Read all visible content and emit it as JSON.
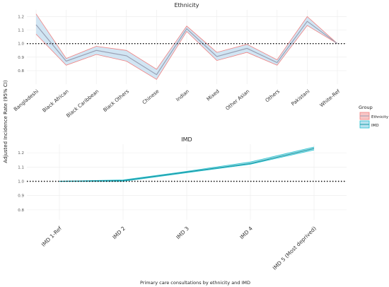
{
  "figure": {
    "ylabel": "Adjusted Incidence Rate (95% CI)",
    "xlabel": "Primary care consultations by ethnicity and IMD"
  },
  "legend": {
    "title": "Group",
    "items": [
      {
        "label": "Ethnicity",
        "fill": "#f8c6c6",
        "line": "#f08080"
      },
      {
        "label": "IMD",
        "fill": "#b8e2ef",
        "line": "#24c0cf"
      }
    ]
  },
  "chart_data": [
    {
      "type": "line",
      "title": "Ethnicity",
      "series_name": "Ethnicity",
      "categories": [
        "Bangladeshi",
        "Black African",
        "Black Caribbean",
        "Black Others",
        "Chinese",
        "Indian",
        "Mixed",
        "Other Asian",
        "Others",
        "Pakistani",
        "White-Ref"
      ],
      "values": [
        1.14,
        0.87,
        0.95,
        0.91,
        0.77,
        1.11,
        0.905,
        0.965,
        0.86,
        1.165,
        1.0
      ],
      "lower": [
        1.07,
        0.84,
        0.92,
        0.87,
        0.735,
        1.09,
        0.875,
        0.935,
        0.84,
        1.135,
        1.0
      ],
      "upper": [
        1.22,
        0.89,
        0.98,
        0.95,
        0.81,
        1.13,
        0.935,
        0.995,
        0.88,
        1.2,
        1.0
      ],
      "reference": 1.0,
      "ylim": [
        0.7,
        1.25
      ],
      "yticks": [
        "0.8",
        "0.9",
        "1.0",
        "1.1",
        "1.2"
      ],
      "colors": {
        "band": "#cfe4f2",
        "line": "#b8bcc8",
        "edge": "#f08080",
        "center": "#9aa0b4"
      }
    },
    {
      "type": "line",
      "title": "IMD",
      "series_name": "IMD",
      "categories": [
        "IMD 1-Ref",
        "IMD 2",
        "IMD 3",
        "IMD 4",
        "IMD 5 (Most deprived)"
      ],
      "values": [
        1.0,
        1.005,
        1.065,
        1.125,
        1.23
      ],
      "lower": [
        1.0,
        1.0,
        1.06,
        1.12,
        1.22
      ],
      "upper": [
        1.0,
        1.01,
        1.07,
        1.135,
        1.24
      ],
      "reference": 1.0,
      "ylim": [
        0.73,
        1.26
      ],
      "yticks": [
        "0.8",
        "0.9",
        "1.0",
        "1.1",
        "1.2"
      ],
      "colors": {
        "band": "#9fdde6",
        "line": "#1a9aa6",
        "edge": "#24c0cf",
        "center": "#1a9aa6"
      }
    }
  ]
}
